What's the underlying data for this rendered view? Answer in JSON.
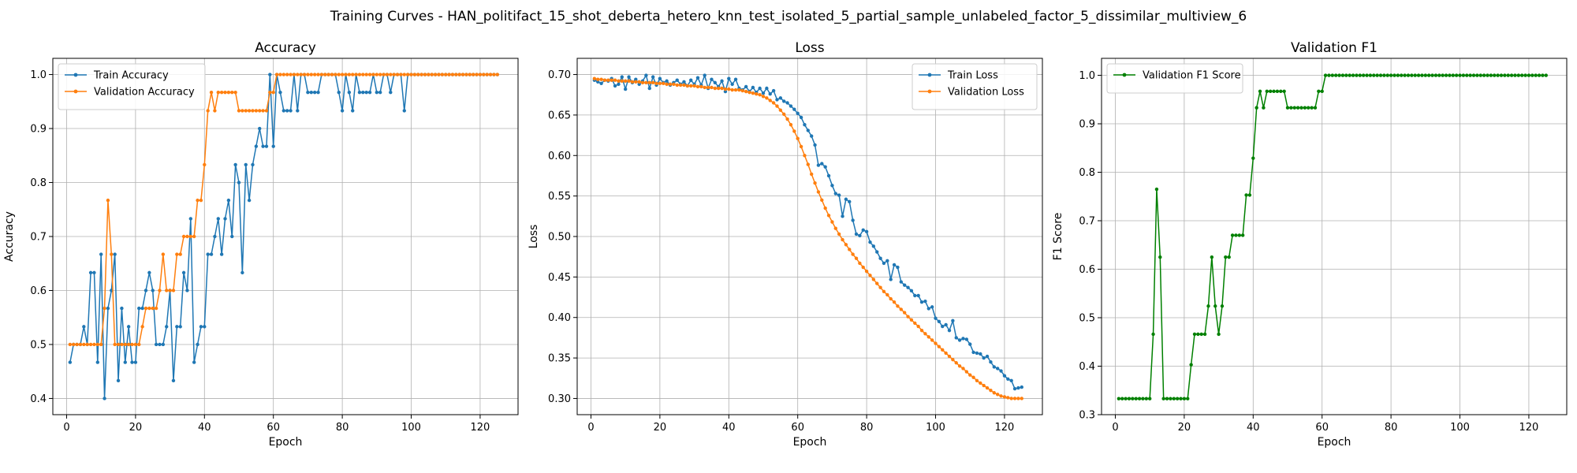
{
  "figure": {
    "suptitle": "Training Curves - HAN_politifact_15_shot_deberta_hetero_knn_test_isolated_5_partial_sample_unlabeled_factor_5_dissimilar_multiview_6"
  },
  "chart_data": [
    {
      "type": "line",
      "title": "Accuracy",
      "xlabel": "Epoch",
      "ylabel": "Accuracy",
      "xlim": [
        -4,
        131
      ],
      "ylim": [
        0.37,
        1.03
      ],
      "xticks": [
        0,
        20,
        40,
        60,
        80,
        100,
        120
      ],
      "yticks": [
        0.4,
        0.5,
        0.6,
        0.7,
        0.8,
        0.9,
        1.0
      ],
      "ytick_labels": [
        "0.4",
        "0.5",
        "0.6",
        "0.7",
        "0.8",
        "0.9",
        "1.0"
      ],
      "grid": true,
      "legend_position": "upper-left",
      "series": [
        {
          "name": "Train Accuracy",
          "color": "#1f77b4",
          "y": [
            0.467,
            0.5,
            0.5,
            0.5,
            0.533,
            0.5,
            0.633,
            0.633,
            0.467,
            0.667,
            0.4,
            0.567,
            0.6,
            0.667,
            0.433,
            0.567,
            0.467,
            0.533,
            0.467,
            0.467,
            0.567,
            0.567,
            0.6,
            0.633,
            0.6,
            0.5,
            0.5,
            0.5,
            0.533,
            0.6,
            0.433,
            0.533,
            0.533,
            0.633,
            0.6,
            0.733,
            0.467,
            0.5,
            0.533,
            0.533,
            0.667,
            0.667,
            0.7,
            0.733,
            0.667,
            0.733,
            0.767,
            0.7,
            0.833,
            0.8,
            0.633,
            0.833,
            0.767,
            0.833,
            0.867,
            0.9,
            0.867,
            0.867,
            1.0,
            0.867,
            1.0,
            0.967,
            0.933,
            0.933,
            0.933,
            1.0,
            0.933,
            1.0,
            1.0,
            0.967,
            0.967,
            0.967,
            0.967,
            1.0,
            1.0,
            1.0,
            1.0,
            1.0,
            0.967,
            0.933,
            1.0,
            0.967,
            0.933,
            1.0,
            0.967,
            0.967,
            0.967,
            0.967,
            1.0,
            0.967,
            0.967,
            1.0,
            1.0,
            0.967,
            1.0,
            1.0,
            1.0,
            0.933,
            1.0,
            1.0,
            1.0,
            1.0,
            1.0,
            1.0,
            1.0,
            1.0,
            1.0,
            1.0,
            1.0,
            1.0,
            1.0,
            1.0,
            1.0,
            1.0,
            1.0,
            1.0,
            1.0,
            1.0,
            1.0,
            1.0,
            1.0,
            1.0,
            1.0,
            1.0,
            1.0
          ]
        },
        {
          "name": "Validation Accuracy",
          "color": "#ff7f0e",
          "y": [
            0.5,
            0.5,
            0.5,
            0.5,
            0.5,
            0.5,
            0.5,
            0.5,
            0.5,
            0.5,
            0.567,
            0.767,
            0.667,
            0.5,
            0.5,
            0.5,
            0.5,
            0.5,
            0.5,
            0.5,
            0.5,
            0.533,
            0.567,
            0.567,
            0.567,
            0.567,
            0.6,
            0.667,
            0.6,
            0.6,
            0.6,
            0.667,
            0.667,
            0.7,
            0.7,
            0.7,
            0.7,
            0.767,
            0.767,
            0.833,
            0.933,
            0.967,
            0.933,
            0.967,
            0.967,
            0.967,
            0.967,
            0.967,
            0.967,
            0.933,
            0.933,
            0.933,
            0.933,
            0.933,
            0.933,
            0.933,
            0.933,
            0.933,
            0.967,
            0.967,
            1.0,
            1.0,
            1.0,
            1.0,
            1.0,
            1.0,
            1.0,
            1.0,
            1.0,
            1.0,
            1.0,
            1.0,
            1.0,
            1.0,
            1.0,
            1.0,
            1.0,
            1.0,
            1.0,
            1.0,
            1.0,
            1.0,
            1.0,
            1.0,
            1.0,
            1.0,
            1.0,
            1.0,
            1.0,
            1.0,
            1.0,
            1.0,
            1.0,
            1.0,
            1.0,
            1.0,
            1.0,
            1.0,
            1.0,
            1.0,
            1.0,
            1.0,
            1.0,
            1.0,
            1.0,
            1.0,
            1.0,
            1.0,
            1.0,
            1.0,
            1.0,
            1.0,
            1.0,
            1.0,
            1.0,
            1.0,
            1.0,
            1.0,
            1.0,
            1.0,
            1.0,
            1.0,
            1.0,
            1.0,
            1.0
          ]
        }
      ]
    },
    {
      "type": "line",
      "title": "Loss",
      "xlabel": "Epoch",
      "ylabel": "Loss",
      "xlim": [
        -4,
        131
      ],
      "ylim": [
        0.28,
        0.72
      ],
      "xticks": [
        0,
        20,
        40,
        60,
        80,
        100,
        120
      ],
      "yticks": [
        0.3,
        0.35,
        0.4,
        0.45,
        0.5,
        0.55,
        0.6,
        0.65,
        0.7
      ],
      "ytick_labels": [
        "0.30",
        "0.35",
        "0.40",
        "0.45",
        "0.50",
        "0.55",
        "0.60",
        "0.65",
        "0.70"
      ],
      "grid": true,
      "legend_position": "upper-right",
      "series": [
        {
          "name": "Train Loss",
          "color": "#1f77b4",
          "y": [
            0.693,
            0.691,
            0.689,
            0.693,
            0.692,
            0.695,
            0.686,
            0.688,
            0.697,
            0.682,
            0.697,
            0.69,
            0.694,
            0.688,
            0.692,
            0.699,
            0.683,
            0.697,
            0.687,
            0.695,
            0.69,
            0.692,
            0.687,
            0.69,
            0.693,
            0.688,
            0.691,
            0.686,
            0.693,
            0.688,
            0.696,
            0.687,
            0.699,
            0.683,
            0.694,
            0.69,
            0.685,
            0.692,
            0.679,
            0.695,
            0.688,
            0.694,
            0.683,
            0.681,
            0.685,
            0.679,
            0.684,
            0.678,
            0.683,
            0.677,
            0.683,
            0.676,
            0.68,
            0.669,
            0.671,
            0.667,
            0.665,
            0.661,
            0.657,
            0.652,
            0.647,
            0.638,
            0.631,
            0.624,
            0.613,
            0.588,
            0.59,
            0.586,
            0.575,
            0.563,
            0.553,
            0.551,
            0.525,
            0.546,
            0.543,
            0.52,
            0.503,
            0.501,
            0.508,
            0.506,
            0.493,
            0.488,
            0.481,
            0.473,
            0.467,
            0.47,
            0.447,
            0.465,
            0.462,
            0.444,
            0.44,
            0.437,
            0.433,
            0.427,
            0.427,
            0.419,
            0.42,
            0.411,
            0.413,
            0.399,
            0.395,
            0.389,
            0.391,
            0.384,
            0.396,
            0.375,
            0.372,
            0.374,
            0.373,
            0.367,
            0.357,
            0.356,
            0.355,
            0.35,
            0.352,
            0.345,
            0.339,
            0.337,
            0.334,
            0.328,
            0.324,
            0.322,
            0.312,
            0.313,
            0.314
          ]
        },
        {
          "name": "Validation Loss",
          "color": "#ff7f0e",
          "y": [
            0.695,
            0.694,
            0.694,
            0.693,
            0.693,
            0.693,
            0.693,
            0.692,
            0.692,
            0.692,
            0.692,
            0.691,
            0.691,
            0.691,
            0.69,
            0.69,
            0.69,
            0.69,
            0.689,
            0.689,
            0.689,
            0.688,
            0.688,
            0.688,
            0.687,
            0.687,
            0.687,
            0.686,
            0.686,
            0.686,
            0.685,
            0.685,
            0.684,
            0.684,
            0.684,
            0.683,
            0.683,
            0.683,
            0.682,
            0.682,
            0.681,
            0.681,
            0.681,
            0.68,
            0.679,
            0.678,
            0.677,
            0.676,
            0.675,
            0.673,
            0.671,
            0.668,
            0.665,
            0.661,
            0.656,
            0.651,
            0.645,
            0.638,
            0.63,
            0.621,
            0.611,
            0.6,
            0.589,
            0.577,
            0.566,
            0.555,
            0.545,
            0.535,
            0.526,
            0.518,
            0.51,
            0.503,
            0.496,
            0.49,
            0.484,
            0.478,
            0.473,
            0.467,
            0.462,
            0.457,
            0.452,
            0.447,
            0.442,
            0.437,
            0.432,
            0.428,
            0.423,
            0.419,
            0.414,
            0.41,
            0.406,
            0.401,
            0.397,
            0.393,
            0.389,
            0.384,
            0.38,
            0.376,
            0.372,
            0.368,
            0.364,
            0.36,
            0.356,
            0.352,
            0.348,
            0.344,
            0.34,
            0.337,
            0.333,
            0.329,
            0.326,
            0.322,
            0.319,
            0.316,
            0.313,
            0.31,
            0.307,
            0.305,
            0.303,
            0.302,
            0.301,
            0.3,
            0.3,
            0.3,
            0.3
          ]
        }
      ]
    },
    {
      "type": "line",
      "title": "Validation F1",
      "xlabel": "Epoch",
      "ylabel": "F1 Score",
      "xlim": [
        -4,
        131
      ],
      "ylim": [
        0.3,
        1.035
      ],
      "xticks": [
        0,
        20,
        40,
        60,
        80,
        100,
        120
      ],
      "yticks": [
        0.3,
        0.4,
        0.5,
        0.6,
        0.7,
        0.8,
        0.9,
        1.0
      ],
      "ytick_labels": [
        "0.3",
        "0.4",
        "0.5",
        "0.6",
        "0.7",
        "0.8",
        "0.9",
        "1.0"
      ],
      "grid": true,
      "legend_position": "upper-left",
      "series": [
        {
          "name": "Validation F1 Score",
          "color": "#008000",
          "y": [
            0.333,
            0.333,
            0.333,
            0.333,
            0.333,
            0.333,
            0.333,
            0.333,
            0.333,
            0.333,
            0.466,
            0.765,
            0.625,
            0.333,
            0.333,
            0.333,
            0.333,
            0.333,
            0.333,
            0.333,
            0.333,
            0.403,
            0.466,
            0.466,
            0.466,
            0.466,
            0.524,
            0.625,
            0.524,
            0.466,
            0.524,
            0.625,
            0.625,
            0.67,
            0.67,
            0.67,
            0.67,
            0.753,
            0.753,
            0.829,
            0.933,
            0.967,
            0.933,
            0.967,
            0.967,
            0.967,
            0.967,
            0.967,
            0.967,
            0.933,
            0.933,
            0.933,
            0.933,
            0.933,
            0.933,
            0.933,
            0.933,
            0.933,
            0.967,
            0.967,
            1.0,
            1.0,
            1.0,
            1.0,
            1.0,
            1.0,
            1.0,
            1.0,
            1.0,
            1.0,
            1.0,
            1.0,
            1.0,
            1.0,
            1.0,
            1.0,
            1.0,
            1.0,
            1.0,
            1.0,
            1.0,
            1.0,
            1.0,
            1.0,
            1.0,
            1.0,
            1.0,
            1.0,
            1.0,
            1.0,
            1.0,
            1.0,
            1.0,
            1.0,
            1.0,
            1.0,
            1.0,
            1.0,
            1.0,
            1.0,
            1.0,
            1.0,
            1.0,
            1.0,
            1.0,
            1.0,
            1.0,
            1.0,
            1.0,
            1.0,
            1.0,
            1.0,
            1.0,
            1.0,
            1.0,
            1.0,
            1.0,
            1.0,
            1.0,
            1.0,
            1.0,
            1.0,
            1.0,
            1.0,
            1.0
          ]
        }
      ]
    }
  ]
}
